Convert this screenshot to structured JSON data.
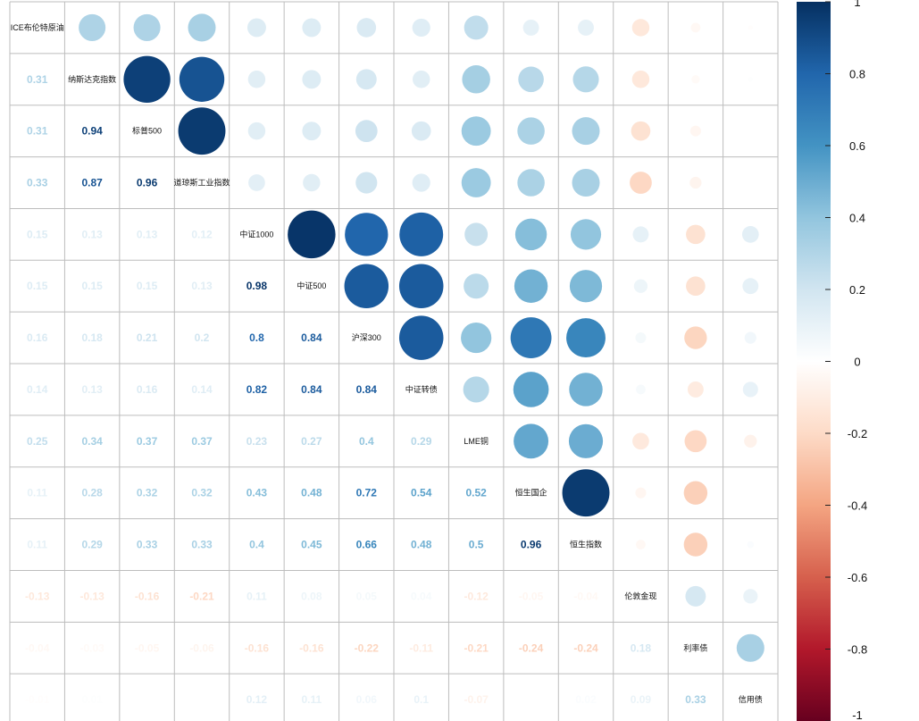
{
  "chart_data": {
    "type": "heatmap",
    "variables": [
      "ICE布伦特原油",
      "纳斯达克指数",
      "标普500",
      "道琼斯工业指数",
      "中证1000",
      "中证500",
      "沪深300",
      "中证转债",
      "LME铜",
      "恒生国企",
      "恒生指数",
      "伦敦金现",
      "利率债",
      "信用债"
    ],
    "correlations": [
      [
        1,
        0.31,
        0.31,
        0.33,
        0.15,
        0.15,
        0.16,
        0.14,
        0.25,
        0.11,
        0.11,
        -0.13,
        -0.04,
        -0.01
      ],
      [
        0.31,
        1,
        0.94,
        0.87,
        0.13,
        0.15,
        0.18,
        0.13,
        0.34,
        0.28,
        0.29,
        -0.13,
        -0.03,
        0.01
      ],
      [
        0.31,
        0.94,
        1,
        0.96,
        0.13,
        0.15,
        0.21,
        0.16,
        0.37,
        0.32,
        0.33,
        -0.16,
        -0.05,
        0
      ],
      [
        0.33,
        0.87,
        0.96,
        1,
        0.12,
        0.13,
        0.2,
        0.14,
        0.37,
        0.32,
        0.33,
        -0.21,
        -0.06,
        0
      ],
      [
        0.15,
        0.13,
        0.13,
        0.12,
        1,
        0.98,
        0.8,
        0.82,
        0.23,
        0.43,
        0.4,
        0.11,
        -0.16,
        0.12
      ],
      [
        0.15,
        0.15,
        0.15,
        0.13,
        0.98,
        1,
        0.84,
        0.84,
        0.27,
        0.48,
        0.45,
        0.08,
        -0.16,
        0.11
      ],
      [
        0.16,
        0.18,
        0.21,
        0.2,
        0.8,
        0.84,
        1,
        0.84,
        0.4,
        0.72,
        0.66,
        0.05,
        -0.22,
        0.06
      ],
      [
        0.14,
        0.13,
        0.16,
        0.14,
        0.82,
        0.84,
        0.84,
        1,
        0.29,
        0.54,
        0.48,
        0.04,
        -0.11,
        0.1
      ],
      [
        0.25,
        0.34,
        0.37,
        0.37,
        0.23,
        0.27,
        0.4,
        0.29,
        1,
        0.52,
        0.5,
        -0.12,
        -0.21,
        -0.07
      ],
      [
        0.11,
        0.28,
        0.32,
        0.32,
        0.43,
        0.48,
        0.72,
        0.54,
        0.52,
        1,
        0.96,
        -0.05,
        -0.24,
        0
      ],
      [
        0.11,
        0.29,
        0.33,
        0.33,
        0.4,
        0.45,
        0.66,
        0.48,
        0.5,
        0.96,
        1,
        -0.04,
        -0.24,
        0.02
      ],
      [
        -0.13,
        -0.13,
        -0.16,
        -0.21,
        0.11,
        0.08,
        0.05,
        0.04,
        -0.12,
        -0.05,
        -0.04,
        1,
        0.18,
        0.09
      ],
      [
        -0.04,
        -0.03,
        -0.05,
        -0.06,
        -0.16,
        -0.16,
        -0.22,
        -0.11,
        -0.21,
        -0.24,
        -0.24,
        0.18,
        1,
        0.33
      ],
      [
        -0.01,
        0.01,
        0,
        0,
        0.12,
        0.11,
        0.06,
        0.1,
        -0.07,
        0,
        0.02,
        0.09,
        0.33,
        1
      ]
    ],
    "lower_triangle": "numbers",
    "upper_triangle": "circles",
    "colorbar": {
      "range": [
        -1,
        1
      ],
      "ticks": [
        "1",
        "0.8",
        "0.6",
        "0.4",
        "0.2",
        "0",
        "-0.2",
        "-0.4",
        "-0.6",
        "-0.8",
        "-1"
      ],
      "colors": [
        "#053061",
        "#2166AC",
        "#4393C3",
        "#92C5DE",
        "#D1E5F0",
        "#FFFFFF",
        "#FDDBC7",
        "#F4A582",
        "#D6604D",
        "#B2182B",
        "#67001F"
      ]
    },
    "grid": true
  }
}
